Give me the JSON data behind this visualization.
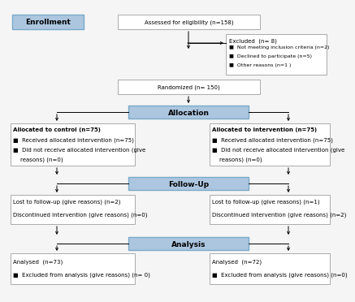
{
  "bg_color": "#f5f5f5",
  "box_outline_color": "#aaaaaa",
  "blue_fill": "#adc6e0",
  "blue_stroke": "#7aaac8",
  "white_fill": "#ffffff",
  "text_color": "#000000",
  "font_size": 5.0,
  "label_font_size": 6.5,
  "enrollment_label": "Enrollment",
  "allocation_label": "Allocation",
  "followup_label": "Follow-Up",
  "analysis_label": "Analysis",
  "assessed_text": "Assessed for eligibility (n=158)",
  "excluded_title": "Excluded  (n= 8)",
  "excluded_lines": [
    "■  Not meeting inclusion criteria (n=2)",
    "■  Declined to participate (n=5)",
    "■  Other reasons (n=1 )"
  ],
  "randomized_text": "Randomized (n= 150)",
  "left_alloc_lines": [
    "Allocated to control (n=75)",
    "■  Received allocated intervention (n=75)",
    "■  Did not receive allocated intervention (give",
    "    reasons) (n=0)"
  ],
  "right_alloc_lines": [
    "Allocated to intervention (n=75)",
    "■  Received allocated intervention (n=75)",
    "■  Did not receive allocated intervention (give",
    "    reasons) (n=0)"
  ],
  "left_followup_lines": [
    "Lost to follow-up (give reasons) (n=2)",
    "Discontinued intervention (give reasons) (n=0)"
  ],
  "right_followup_lines": [
    "Lost to follow-up (give reasons) (n=1)",
    "Discontinued intervention (give reasons) (n=2)"
  ],
  "left_analysis_lines": [
    "Analysed  (n=73)",
    "■  Excluded from analysis (give reasons) (n= 0)"
  ],
  "right_analysis_lines": [
    "Analysed  (n=72)",
    "■  Excluded from analysis (give reasons) (n=0)"
  ]
}
